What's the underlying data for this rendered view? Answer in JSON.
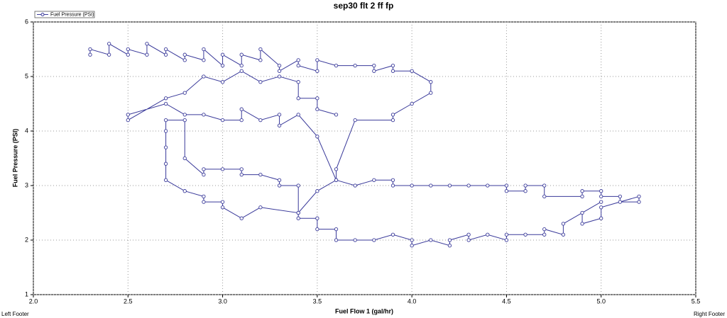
{
  "chart_data": {
    "type": "line",
    "title": "sep30 flt 2 ff fp",
    "x_label": "Fuel Flow 1 (gal/hr)",
    "y_label": "Fuel Pressure (PSI)",
    "xlim": [
      2.0,
      5.5
    ],
    "xticks": [
      {
        "value": 2.0,
        "label": "2.0"
      },
      2.5,
      {
        "value": 3.0,
        "label": "3.0"
      },
      3.5,
      {
        "value": 4.0,
        "label": "4.0"
      },
      4.5,
      {
        "value": 5.0,
        "label": "5.0"
      },
      5.5
    ],
    "ylim": [
      1,
      6
    ],
    "yticks": [
      1,
      2,
      3,
      4,
      5,
      6
    ],
    "grid": true,
    "legend": "top-left",
    "x": [
      2.3,
      2.3,
      2.4,
      2.4,
      2.5,
      2.5,
      2.6,
      2.6,
      2.7,
      2.7,
      2.8,
      2.8,
      2.9,
      2.9,
      3.0,
      3.0,
      3.1,
      3.1,
      3.2,
      3.2,
      3.3,
      3.3,
      3.4,
      3.4,
      3.5,
      3.5,
      3.6,
      3.7,
      3.8,
      3.8,
      3.9,
      3.9,
      4.0,
      4.1,
      4.1,
      4.0,
      3.9,
      3.9,
      3.7,
      3.6,
      3.6,
      3.7,
      3.8,
      3.9,
      3.9,
      4.0,
      4.1,
      4.2,
      4.3,
      4.4,
      4.5,
      4.5,
      4.6,
      4.6,
      4.7,
      4.7,
      4.9,
      4.9,
      5.0,
      5.0,
      5.1,
      5.1,
      5.2,
      5.2,
      5.0,
      5.0,
      4.9,
      4.9,
      5.0,
      4.8,
      4.8,
      4.7,
      4.7,
      4.6,
      4.5,
      4.5,
      4.4,
      4.3,
      4.3,
      4.2,
      4.2,
      4.1,
      4.0,
      4.0,
      3.9,
      3.8,
      3.7,
      3.6,
      3.6,
      3.5,
      3.5,
      3.4,
      3.4,
      3.2,
      3.1,
      3.0,
      3.0,
      2.9,
      2.9,
      2.8,
      2.7,
      2.7,
      2.7,
      2.7,
      2.7,
      2.8,
      2.8,
      2.9,
      2.9,
      3.0,
      3.1,
      3.1,
      3.2,
      3.3,
      3.3,
      3.4,
      3.4,
      3.5,
      3.6,
      3.5,
      3.4,
      3.3,
      3.3,
      3.2,
      3.1,
      3.1,
      3.0,
      2.9,
      2.8,
      2.7,
      2.5,
      2.5,
      2.7,
      2.8,
      2.9,
      3.0,
      3.1,
      3.2,
      3.3,
      3.4,
      3.4,
      3.5,
      3.5,
      3.6
    ],
    "series": [
      {
        "name": "Fuel Pressure (PSI)",
        "color": "#3a3a9a",
        "values": [
          5.4,
          5.5,
          5.4,
          5.6,
          5.4,
          5.5,
          5.4,
          5.6,
          5.4,
          5.5,
          5.3,
          5.4,
          5.3,
          5.5,
          5.2,
          5.4,
          5.2,
          5.4,
          5.3,
          5.5,
          5.2,
          5.1,
          5.3,
          5.2,
          5.1,
          5.3,
          5.2,
          5.2,
          5.2,
          5.1,
          5.2,
          5.1,
          5.1,
          4.9,
          4.7,
          4.5,
          4.3,
          4.2,
          4.2,
          3.3,
          3.1,
          3.0,
          3.1,
          3.1,
          3.0,
          3.0,
          3.0,
          3.0,
          3.0,
          3.0,
          3.0,
          2.9,
          2.9,
          3.0,
          3.0,
          2.8,
          2.8,
          2.9,
          2.9,
          2.8,
          2.8,
          2.7,
          2.7,
          2.8,
          2.6,
          2.4,
          2.3,
          2.5,
          2.7,
          2.3,
          2.1,
          2.2,
          2.1,
          2.1,
          2.1,
          2.0,
          2.1,
          2.0,
          2.1,
          2.0,
          1.9,
          2.0,
          1.9,
          2.0,
          2.1,
          2.0,
          2.0,
          2.0,
          2.2,
          2.2,
          2.4,
          2.4,
          2.5,
          2.6,
          2.4,
          2.6,
          2.7,
          2.7,
          2.8,
          2.9,
          3.1,
          3.4,
          3.7,
          4.0,
          4.2,
          4.2,
          3.5,
          3.2,
          3.3,
          3.3,
          3.3,
          3.2,
          3.2,
          3.1,
          3.0,
          3.0,
          2.5,
          2.9,
          3.1,
          3.9,
          4.3,
          4.1,
          4.3,
          4.2,
          4.4,
          4.2,
          4.2,
          4.3,
          4.3,
          4.5,
          4.3,
          4.2,
          4.6,
          4.7,
          5.0,
          4.9,
          5.1,
          4.9,
          5.0,
          4.9,
          4.6,
          4.6,
          4.4,
          4.3
        ]
      }
    ]
  },
  "footer": {
    "left": "Left Footer",
    "right": "Right Footer"
  }
}
